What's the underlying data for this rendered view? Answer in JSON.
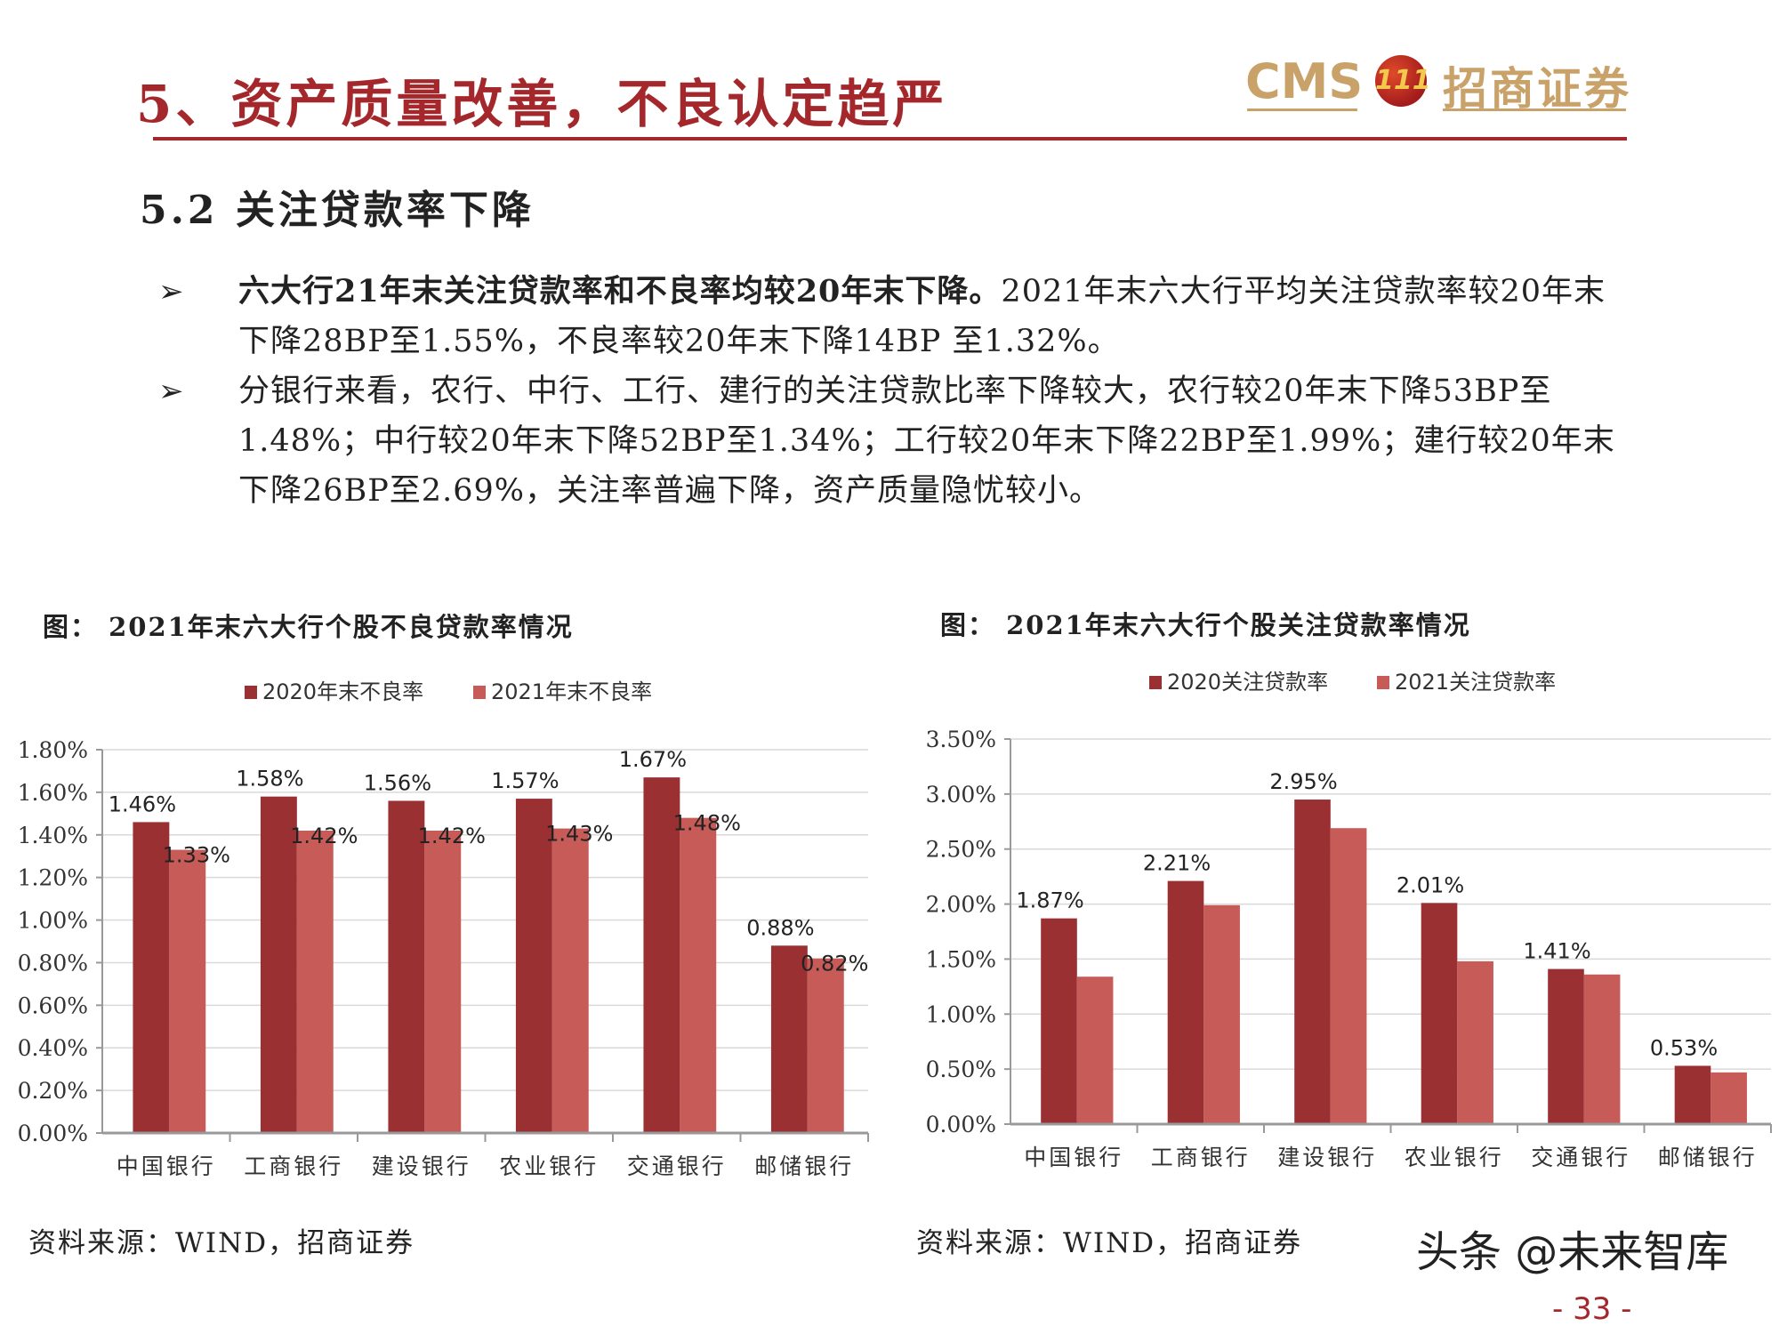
{
  "header": {
    "title": "5、资产质量改善，不良认定趋严",
    "logo": {
      "latin": "CMS",
      "emblem": "111",
      "chinese": "招商证券"
    }
  },
  "section": {
    "title": "5.2   关注贷款率下降"
  },
  "bullets": [
    {
      "bold": "六大行21年末关注贷款率和不良率均较20年末下降。",
      "text": "2021年末六大行平均关注贷款率较20年末下降28BP至1.55%，不良率较20年末下降14BP 至1.32%。"
    },
    {
      "bold": "",
      "text": "分银行来看，农行、中行、工行、建行的关注贷款比率下降较大，农行较20年末下降53BP至1.48%；中行较20年末下降52BP至1.34%；工行较20年末下降22BP至1.99%；建行较20年末下降26BP至2.69%，关注率普遍下降，资产质量隐忧较小。"
    }
  ],
  "bullet_icon": "arrowhead-icon",
  "colors": {
    "accent": "#a3272b",
    "series_2020": "#9b3033",
    "series_2021": "#c65b58",
    "logo_gold": "#c9a26a"
  },
  "chart_data": [
    {
      "type": "bar",
      "title": "图：  2021年末六大行个股不良贷款率情况",
      "categories": [
        "中国银行",
        "工商银行",
        "建设银行",
        "农业银行",
        "交通银行",
        "邮储银行"
      ],
      "series": [
        {
          "name": "2020年末不良率",
          "values": [
            1.46,
            1.58,
            1.56,
            1.57,
            1.67,
            0.88
          ],
          "labels": [
            "1.46%",
            "1.58%",
            "1.56%",
            "1.57%",
            "1.67%",
            "0.88%"
          ]
        },
        {
          "name": "2021年末不良率",
          "values": [
            1.33,
            1.42,
            1.42,
            1.43,
            1.48,
            0.82
          ],
          "labels": [
            "1.33%",
            "1.42%",
            "1.42%",
            "1.43%",
            "1.48%",
            "0.82%"
          ]
        }
      ],
      "ylim": [
        0,
        1.8
      ],
      "yticks": [
        "0.00%",
        "0.20%",
        "0.40%",
        "0.60%",
        "0.80%",
        "1.00%",
        "1.20%",
        "1.40%",
        "1.60%",
        "1.80%"
      ],
      "grid": true,
      "legend": "top",
      "source": "资料来源：WIND，招商证券"
    },
    {
      "type": "bar",
      "title": "图：  2021年末六大行个股关注贷款率情况",
      "categories": [
        "中国银行",
        "工商银行",
        "建设银行",
        "农业银行",
        "交通银行",
        "邮储银行"
      ],
      "series": [
        {
          "name": "2020关注贷款率",
          "values": [
            1.87,
            2.21,
            2.95,
            2.01,
            1.41,
            0.53
          ],
          "labels": [
            "1.87%",
            "2.21%",
            "2.95%",
            "2.01%",
            "1.41%",
            "0.53%"
          ]
        },
        {
          "name": "2021关注贷款率",
          "values": [
            1.34,
            1.99,
            2.69,
            1.48,
            1.36,
            0.47
          ],
          "labels": []
        }
      ],
      "ylim": [
        0,
        3.5
      ],
      "yticks": [
        "0.00%",
        "0.50%",
        "1.00%",
        "1.50%",
        "2.00%",
        "2.50%",
        "3.00%",
        "3.50%"
      ],
      "grid": true,
      "legend": "top",
      "source": "资料来源：WIND，招商证券"
    }
  ],
  "footer": {
    "watermark": "头条 @未来智库",
    "page": "- 33 -"
  }
}
